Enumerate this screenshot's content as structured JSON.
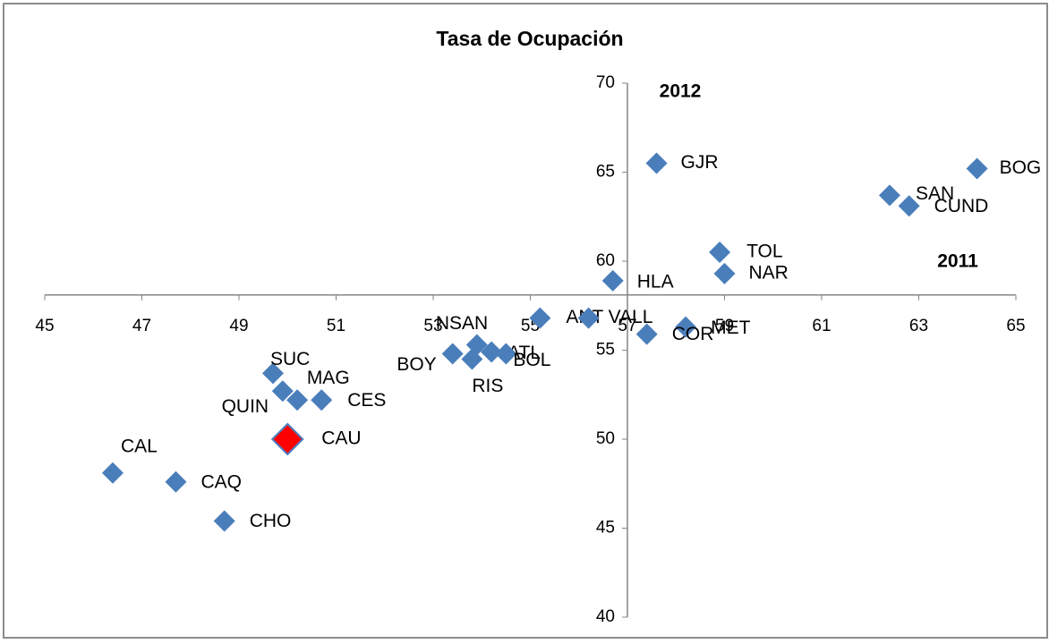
{
  "chart_data": {
    "type": "scatter",
    "title": "Tasa de Ocupación",
    "annotations": [
      "2012",
      "2011"
    ],
    "labels": [
      "GJR",
      "BOG",
      "SAN",
      "CUND",
      "TOL",
      "NAR",
      "HLA",
      "MET",
      "COR",
      "ANT",
      "VALL",
      "NSAN",
      "BOY",
      "RIS",
      "ATL",
      "BOL",
      "SUC",
      "MAG",
      "QUIN",
      "CES",
      "CAU",
      "CAL",
      "CAQ",
      "CHO"
    ],
    "x": [
      57.6,
      64.2,
      62.4,
      62.8,
      58.9,
      59.0,
      56.7,
      58.2,
      57.4,
      55.2,
      56.2,
      53.9,
      53.4,
      53.8,
      54.2,
      54.5,
      49.7,
      49.9,
      50.2,
      50.7,
      50.0,
      46.4,
      47.7,
      48.7
    ],
    "y": [
      65.5,
      65.2,
      63.7,
      63.1,
      60.5,
      59.3,
      58.9,
      56.3,
      55.9,
      56.8,
      56.8,
      55.3,
      54.8,
      54.5,
      54.9,
      54.8,
      53.7,
      52.7,
      52.2,
      52.2,
      50.0,
      48.1,
      47.6,
      45.4
    ],
    "colors": [
      "#4a7ebb",
      "#4a7ebb",
      "#4a7ebb",
      "#4a7ebb",
      "#4a7ebb",
      "#4a7ebb",
      "#4a7ebb",
      "#4a7ebb",
      "#4a7ebb",
      "#4a7ebb",
      "#4a7ebb",
      "#4a7ebb",
      "#4a7ebb",
      "#4a7ebb",
      "#4a7ebb",
      "#4a7ebb",
      "#4a7ebb",
      "#4a7ebb",
      "#4a7ebb",
      "#4a7ebb",
      "#ff0000",
      "#4a7ebb",
      "#4a7ebb",
      "#4a7ebb"
    ],
    "xlim": [
      45,
      65
    ],
    "ylim": [
      40,
      70
    ],
    "xticks": [
      45,
      47,
      49,
      51,
      53,
      55,
      57,
      59,
      61,
      63,
      65
    ],
    "yticks": [
      40,
      45,
      50,
      55,
      60,
      65,
      70
    ],
    "x_axis_crosses_y": 58.1,
    "y_axis_crosses_x": 57
  }
}
